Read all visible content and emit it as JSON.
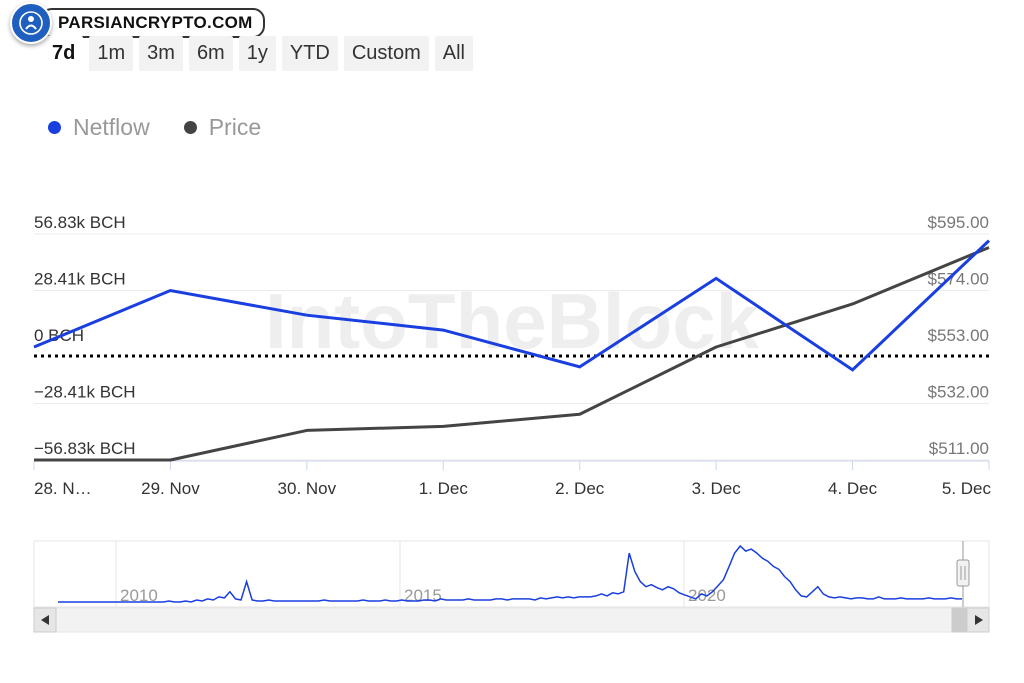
{
  "brand": {
    "name": "PARSIANCRYPTO.COM"
  },
  "range_selector": [
    "7d",
    "1m",
    "3m",
    "6m",
    "1y",
    "YTD",
    "Custom",
    "All"
  ],
  "range_selected": "7d",
  "colors": {
    "netflow": "#1a3fe0",
    "price": "#444444",
    "navigator": "#1a3fe0"
  },
  "watermark": "IntoTheBlock",
  "chart_data": {
    "type": "line",
    "x": [
      "28. Nov",
      "29. Nov",
      "30. Nov",
      "1. Dec",
      "2. Dec",
      "3. Dec",
      "4. Dec",
      "5. Dec"
    ],
    "x_tick_labels": [
      "28. N…",
      "29. Nov",
      "30. Nov",
      "1. Dec",
      "2. Dec",
      "3. Dec",
      "4. Dec",
      "5. Dec"
    ],
    "series": [
      {
        "name": "Netflow",
        "axis": "left",
        "values": [
          0,
          28400,
          16000,
          8500,
          -10000,
          34500,
          -11500,
          53500
        ]
      },
      {
        "name": "Price",
        "axis": "right",
        "values": [
          511,
          511,
          522,
          523.5,
          528,
          553,
          569,
          590
        ]
      }
    ],
    "y_left": {
      "ticks": [
        56830,
        28410,
        0,
        -28410,
        -56830
      ],
      "tick_labels": [
        "56.83k BCH",
        "28.41k BCH",
        "0 BCH",
        "−28.41k BCH",
        "−56.83k BCH"
      ],
      "range": [
        -56830,
        56830
      ]
    },
    "y_right": {
      "ticks": [
        595,
        574,
        553,
        532,
        511
      ],
      "tick_labels": [
        "$595.00",
        "$574.00",
        "$553.00",
        "$532.00",
        "$511.00"
      ],
      "range": [
        511,
        595
      ]
    },
    "zero_line": "dotted",
    "legend_position": "top-left",
    "grid": true
  },
  "navigator": {
    "year_labels": [
      "2010",
      "2015",
      "2020"
    ],
    "values": [
      0,
      0,
      0,
      0,
      0,
      0,
      0,
      0,
      0,
      0,
      0,
      0,
      0,
      0,
      0,
      0,
      0,
      0,
      0,
      0,
      1,
      0,
      0,
      1,
      0,
      2,
      1,
      3,
      2,
      5,
      4,
      10,
      3,
      2,
      20,
      2,
      1,
      1,
      2,
      1,
      1,
      1,
      1,
      1,
      1,
      1,
      1,
      1,
      2,
      1,
      1,
      1,
      1,
      1,
      1,
      2,
      1,
      1,
      1,
      2,
      1,
      1,
      2,
      1,
      1,
      1,
      2,
      2,
      1,
      3,
      2,
      2,
      2,
      2,
      3,
      2,
      2,
      2,
      2,
      3,
      3,
      2,
      3,
      3,
      3,
      3,
      2,
      4,
      3,
      4,
      5,
      4,
      5,
      4,
      5,
      5,
      5,
      6,
      8,
      6,
      9,
      8,
      10,
      48,
      30,
      20,
      15,
      17,
      14,
      12,
      15,
      13,
      9,
      7,
      5,
      3,
      8,
      6,
      10,
      16,
      22,
      35,
      48,
      55,
      50,
      52,
      48,
      43,
      40,
      35,
      32,
      25,
      20,
      12,
      6,
      5,
      10,
      15,
      8,
      5,
      4,
      5,
      4,
      3,
      4,
      4,
      3,
      3,
      5,
      3,
      3,
      3,
      4,
      3,
      3,
      3,
      3,
      4,
      3,
      3,
      3,
      4,
      3,
      3
    ]
  }
}
